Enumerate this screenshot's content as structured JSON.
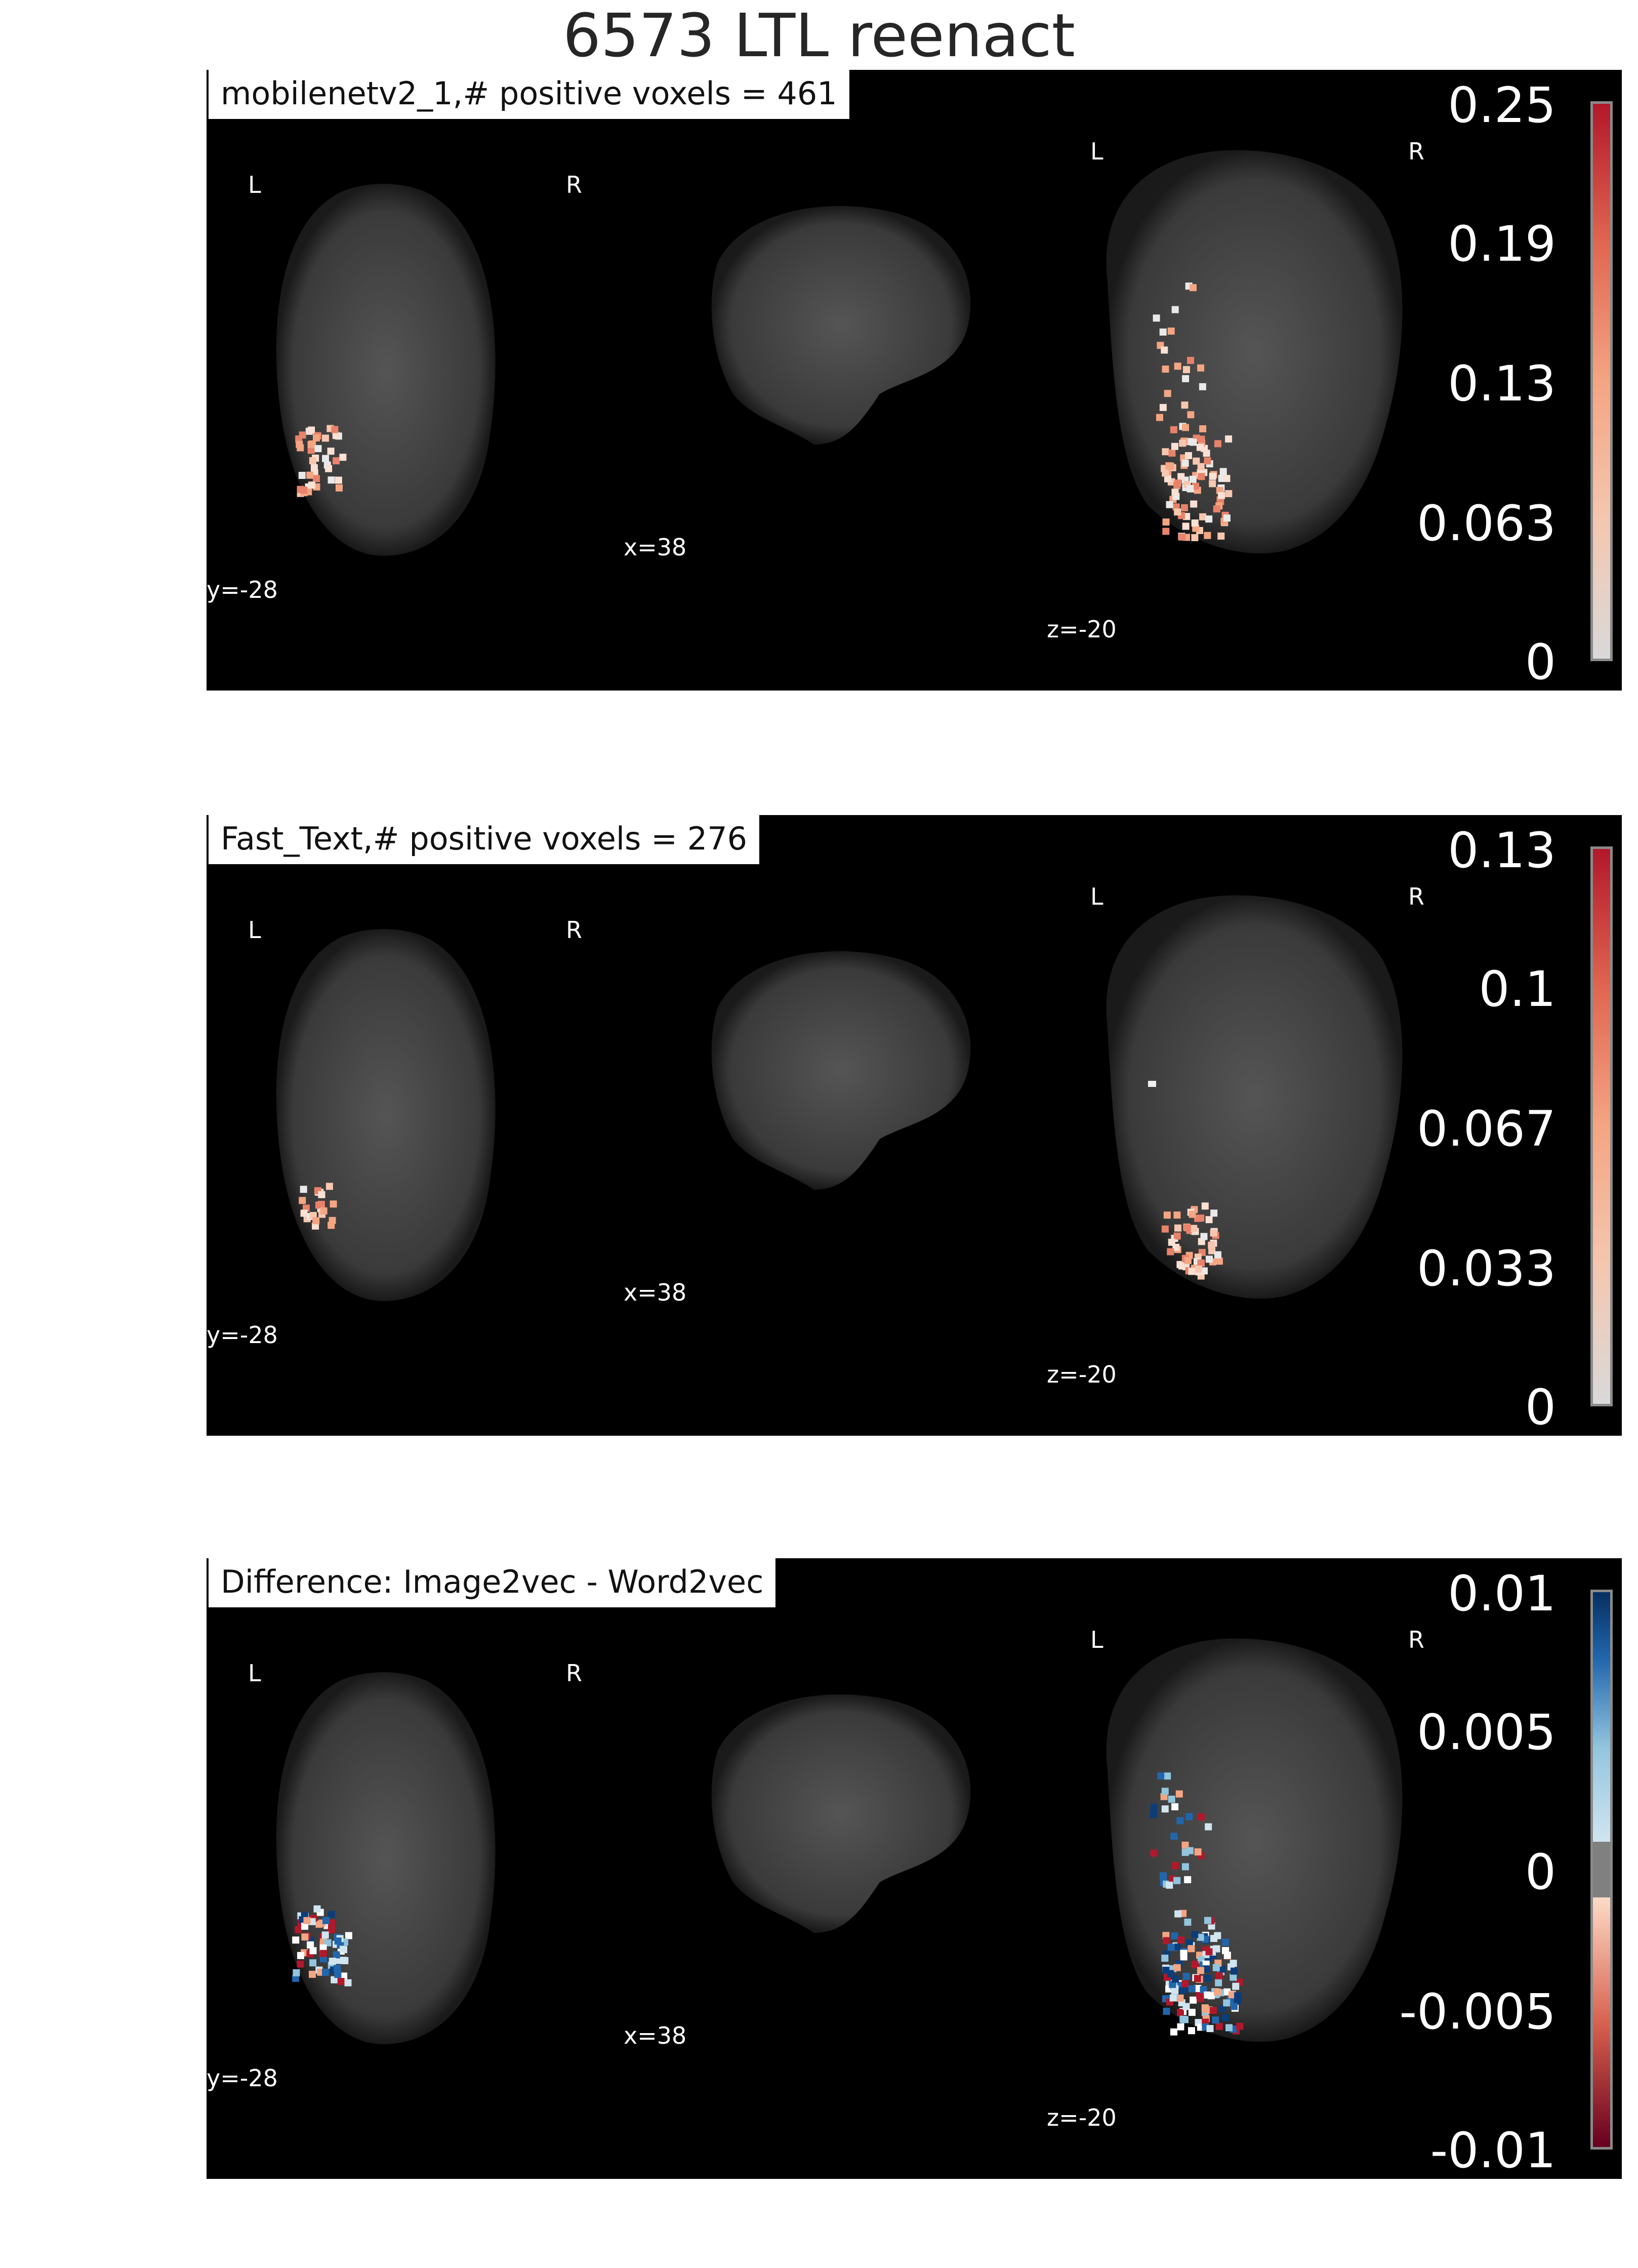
{
  "figure": {
    "title": "6573 LTL reenact"
  },
  "panels": [
    {
      "label": "mobilenetv2_1,# positive voxels = 461",
      "cmap": "reds",
      "ticks": [
        "0.25",
        "0.19",
        "0.13",
        "0.063",
        "0"
      ],
      "coords": {
        "y": "y=-28",
        "x": "x=38",
        "z": "z=-20"
      },
      "orient": {
        "left": "L",
        "right": "R"
      }
    },
    {
      "label": "Fast_Text,# positive voxels = 276",
      "cmap": "reds",
      "ticks": [
        "0.13",
        "0.1",
        "0.067",
        "0.033",
        "0"
      ],
      "coords": {
        "y": "y=-28",
        "x": "x=38",
        "z": "z=-20"
      },
      "orient": {
        "left": "L",
        "right": "R"
      }
    },
    {
      "label": "Difference: Image2vec - Word2vec",
      "cmap": "diverging",
      "ticks": [
        "0.01",
        "0.005",
        "0",
        "-0.005",
        "-0.01"
      ],
      "coords": {
        "y": "y=-28",
        "x": "x=38",
        "z": "z=-20"
      },
      "orient": {
        "left": "L",
        "right": "R"
      }
    }
  ],
  "colors": {
    "background": "#000000",
    "brain": "#4a4a4a",
    "red_high": "#b2182b",
    "red_low": "#f4a582",
    "blue_high": "#2166ac",
    "blue_low": "#92c5de",
    "neutral": "#808080",
    "cbar_border": "#8a8a8a"
  }
}
